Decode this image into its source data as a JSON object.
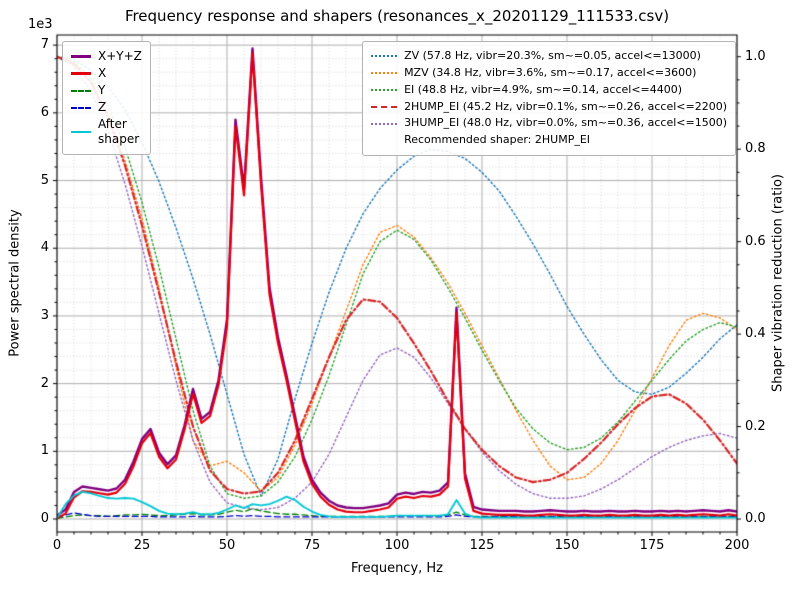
{
  "chart_data": {
    "type": "line",
    "title": "Frequency response and shapers (resonances_x_20201129_111533.csv)",
    "xlabel": "Frequency, Hz",
    "ylabel_left": "Power spectral density",
    "ylabel_right": "Shaper vibration reduction (ratio)",
    "offset_text": "1e3",
    "xlim": [
      0,
      200
    ],
    "ylim_left": [
      -0.192,
      7.15
    ],
    "ylim_right": [
      -0.028,
      1.047
    ],
    "xticks": [
      0,
      25,
      50,
      75,
      100,
      125,
      150,
      175,
      200
    ],
    "xtick_minor_step": 5,
    "yticks_left": [
      0,
      1,
      2,
      3,
      4,
      5,
      6,
      7
    ],
    "ytick_left_minor_step": 0.2,
    "yticks_right": [
      "0.0",
      "0.2",
      "0.4",
      "0.6",
      "0.8",
      "1.0"
    ],
    "grid": {
      "major_color": "#b0b0b0",
      "minor_color": "#d7d7d7"
    },
    "legend_left": {
      "entries": [
        {
          "name": "xyz",
          "label": "X+Y+Z",
          "color": "#800080",
          "dash": "solid",
          "lw": 3
        },
        {
          "name": "x",
          "label": "X",
          "color": "#e3000e",
          "dash": "solid",
          "lw": 3
        },
        {
          "name": "y",
          "label": "Y",
          "color": "#008000",
          "dash": "dashed",
          "lw": 2
        },
        {
          "name": "z",
          "label": "Z",
          "color": "#0000cd",
          "dash": "dashed",
          "lw": 2
        },
        {
          "name": "after-shaper",
          "label": "After\nshaper",
          "color": "#00c8d4",
          "dash": "solid",
          "lw": 2
        }
      ]
    },
    "legend_right": {
      "entries": [
        {
          "name": "zv",
          "label": "ZV (57.8 Hz, vibr=20.3%, sm~=0.05, accel<=13000)",
          "color": "#1f77b4",
          "dash": "dotted",
          "lw": 2
        },
        {
          "name": "mzv",
          "label": "MZV (34.8 Hz, vibr=3.6%, sm~=0.17, accel<=3600)",
          "color": "#ff7f0e",
          "dash": "dotted",
          "lw": 2
        },
        {
          "name": "ei",
          "label": "EI (48.8 Hz, vibr=4.9%, sm~=0.14, accel<=4400)",
          "color": "#2ca02c",
          "dash": "dotted",
          "lw": 2
        },
        {
          "name": "2hump_ei",
          "label": "2HUMP_EI (45.2 Hz, vibr=0.1%, sm~=0.26, accel<=2200)",
          "color": "#d62728",
          "dash": "dashdot",
          "lw": 2
        },
        {
          "name": "3hump_ei",
          "label": "3HUMP_EI (48.0 Hz, vibr=0.0%, sm~=0.36, accel<=1500)",
          "color": "#9467bd",
          "dash": "dotted",
          "lw": 2
        }
      ],
      "note": "Recommended shaper: 2HUMP_EI"
    },
    "psd_units": "1e3",
    "psd": {
      "x": [
        0,
        2.5,
        5,
        7.5,
        10,
        12.5,
        15,
        17.5,
        20,
        22.5,
        25,
        27.5,
        30,
        32.5,
        35,
        37.5,
        40,
        42.5,
        45,
        47.5,
        50,
        52.5,
        55,
        57.5,
        60,
        62.5,
        65,
        67.5,
        70,
        72.5,
        75,
        77.5,
        80,
        82.5,
        85,
        87.5,
        90,
        92.5,
        95,
        97.5,
        100,
        102.5,
        105,
        107.5,
        110,
        112.5,
        115,
        117.5,
        120,
        122.5,
        125,
        127.5,
        130,
        132.5,
        135,
        137.5,
        140,
        142.5,
        145,
        147.5,
        150,
        152.5,
        155,
        157.5,
        160,
        162.5,
        165,
        167.5,
        170,
        172.5,
        175,
        177.5,
        180,
        182.5,
        185,
        187.5,
        190,
        192.5,
        195,
        197.5,
        200
      ],
      "series": [
        {
          "name": "Y",
          "color": "#008000",
          "dash": "dashed",
          "lw": 1.3,
          "values": [
            0.01,
            0.03,
            0.05,
            0.06,
            0.05,
            0.05,
            0.04,
            0.05,
            0.06,
            0.06,
            0.07,
            0.06,
            0.05,
            0.05,
            0.06,
            0.07,
            0.08,
            0.06,
            0.06,
            0.07,
            0.1,
            0.13,
            0.11,
            0.15,
            0.12,
            0.1,
            0.08,
            0.07,
            0.07,
            0.06,
            0.05,
            0.04,
            0.04,
            0.04,
            0.04,
            0.04,
            0.04,
            0.04,
            0.04,
            0.04,
            0.05,
            0.05,
            0.05,
            0.05,
            0.05,
            0.05,
            0.06,
            0.1,
            0.06,
            0.04,
            0.04,
            0.04,
            0.04,
            0.04,
            0.04,
            0.04,
            0.04,
            0.04,
            0.04,
            0.04,
            0.04,
            0.04,
            0.04,
            0.04,
            0.04,
            0.04,
            0.04,
            0.04,
            0.04,
            0.04,
            0.04,
            0.04,
            0.04,
            0.04,
            0.04,
            0.04,
            0.04,
            0.04,
            0.04,
            0.04,
            0.04
          ]
        },
        {
          "name": "Z",
          "color": "#0000cd",
          "dash": "dashed",
          "lw": 1.3,
          "values": [
            0.02,
            0.06,
            0.09,
            0.07,
            0.05,
            0.04,
            0.04,
            0.04,
            0.04,
            0.04,
            0.04,
            0.04,
            0.03,
            0.03,
            0.03,
            0.03,
            0.04,
            0.03,
            0.03,
            0.03,
            0.04,
            0.05,
            0.04,
            0.05,
            0.04,
            0.04,
            0.03,
            0.03,
            0.03,
            0.03,
            0.03,
            0.03,
            0.03,
            0.03,
            0.03,
            0.03,
            0.03,
            0.03,
            0.03,
            0.03,
            0.03,
            0.03,
            0.03,
            0.03,
            0.03,
            0.03,
            0.04,
            0.06,
            0.04,
            0.03,
            0.03,
            0.03,
            0.03,
            0.03,
            0.03,
            0.03,
            0.03,
            0.03,
            0.03,
            0.03,
            0.03,
            0.03,
            0.03,
            0.03,
            0.03,
            0.03,
            0.03,
            0.03,
            0.03,
            0.03,
            0.03,
            0.03,
            0.03,
            0.03,
            0.03,
            0.03,
            0.03,
            0.03,
            0.03,
            0.03,
            0.03
          ]
        },
        {
          "name": "X+Y+Z",
          "color": "#800080",
          "dash": "solid",
          "lw": 2.4,
          "values": [
            0.05,
            0.14,
            0.4,
            0.48,
            0.46,
            0.44,
            0.42,
            0.45,
            0.58,
            0.85,
            1.18,
            1.33,
            0.98,
            0.81,
            0.94,
            1.38,
            1.92,
            1.48,
            1.58,
            2.05,
            2.95,
            5.9,
            4.88,
            6.95,
            5.05,
            3.42,
            2.68,
            2.12,
            1.52,
            0.92,
            0.58,
            0.39,
            0.27,
            0.2,
            0.17,
            0.16,
            0.16,
            0.18,
            0.2,
            0.23,
            0.36,
            0.39,
            0.37,
            0.4,
            0.39,
            0.42,
            0.54,
            3.12,
            0.67,
            0.18,
            0.14,
            0.13,
            0.12,
            0.12,
            0.12,
            0.11,
            0.11,
            0.12,
            0.13,
            0.12,
            0.11,
            0.11,
            0.12,
            0.11,
            0.11,
            0.12,
            0.11,
            0.11,
            0.12,
            0.11,
            0.11,
            0.12,
            0.11,
            0.12,
            0.11,
            0.12,
            0.13,
            0.12,
            0.11,
            0.13,
            0.11
          ]
        },
        {
          "name": "X",
          "color": "#e3000e",
          "dash": "solid",
          "lw": 2.2,
          "values": [
            0.01,
            0.08,
            0.32,
            0.41,
            0.4,
            0.38,
            0.36,
            0.39,
            0.52,
            0.78,
            1.12,
            1.27,
            0.92,
            0.75,
            0.88,
            1.32,
            1.85,
            1.42,
            1.52,
            1.98,
            2.85,
            5.8,
            4.78,
            6.88,
            4.95,
            3.32,
            2.6,
            2.05,
            1.45,
            0.85,
            0.52,
            0.33,
            0.21,
            0.14,
            0.11,
            0.1,
            0.1,
            0.12,
            0.14,
            0.17,
            0.3,
            0.33,
            0.31,
            0.34,
            0.33,
            0.36,
            0.48,
            3.05,
            0.6,
            0.12,
            0.08,
            0.07,
            0.06,
            0.06,
            0.06,
            0.05,
            0.05,
            0.06,
            0.07,
            0.06,
            0.05,
            0.05,
            0.06,
            0.05,
            0.05,
            0.06,
            0.05,
            0.05,
            0.06,
            0.05,
            0.05,
            0.06,
            0.05,
            0.06,
            0.05,
            0.06,
            0.07,
            0.06,
            0.05,
            0.07,
            0.05
          ]
        },
        {
          "name": "After shaper",
          "color": "#00c8d4",
          "dash": "solid",
          "lw": 1.8,
          "values": [
            0.01,
            0.22,
            0.35,
            0.4,
            0.38,
            0.34,
            0.31,
            0.3,
            0.31,
            0.3,
            0.25,
            0.19,
            0.12,
            0.08,
            0.07,
            0.08,
            0.1,
            0.07,
            0.07,
            0.09,
            0.14,
            0.2,
            0.16,
            0.22,
            0.2,
            0.22,
            0.27,
            0.33,
            0.28,
            0.18,
            0.11,
            0.06,
            0.04,
            0.03,
            0.03,
            0.03,
            0.03,
            0.03,
            0.03,
            0.04,
            0.05,
            0.05,
            0.05,
            0.05,
            0.05,
            0.05,
            0.07,
            0.28,
            0.08,
            0.03,
            0.02,
            0.02,
            0.02,
            0.02,
            0.02,
            0.02,
            0.02,
            0.02,
            0.02,
            0.02,
            0.02,
            0.02,
            0.02,
            0.02,
            0.02,
            0.02,
            0.02,
            0.02,
            0.02,
            0.02,
            0.02,
            0.02,
            0.02,
            0.02,
            0.02,
            0.02,
            0.02,
            0.02,
            0.02,
            0.02,
            0.02
          ]
        }
      ]
    },
    "shapers": {
      "x": [
        0,
        5,
        10,
        15,
        20,
        25,
        30,
        35,
        40,
        45,
        50,
        55,
        60,
        65,
        70,
        75,
        80,
        85,
        90,
        95,
        100,
        105,
        110,
        115,
        120,
        125,
        130,
        135,
        140,
        145,
        150,
        155,
        160,
        165,
        170,
        175,
        180,
        185,
        190,
        195,
        200
      ],
      "series": [
        {
          "name": "ZV",
          "color": "#1f77b4",
          "dash": "dotted",
          "lw": 1.4,
          "values": [
            1.0,
            0.995,
            0.97,
            0.935,
            0.885,
            0.815,
            0.73,
            0.63,
            0.52,
            0.4,
            0.27,
            0.14,
            0.05,
            0.13,
            0.26,
            0.38,
            0.49,
            0.585,
            0.66,
            0.715,
            0.755,
            0.785,
            0.8,
            0.795,
            0.78,
            0.75,
            0.71,
            0.655,
            0.595,
            0.53,
            0.46,
            0.4,
            0.345,
            0.3,
            0.275,
            0.27,
            0.285,
            0.315,
            0.35,
            0.39,
            0.42
          ]
        },
        {
          "name": "MZV",
          "color": "#ff7f0e",
          "dash": "dotted",
          "lw": 1.4,
          "values": [
            1.0,
            0.985,
            0.945,
            0.875,
            0.775,
            0.65,
            0.5,
            0.33,
            0.17,
            0.115,
            0.125,
            0.1,
            0.06,
            0.09,
            0.16,
            0.25,
            0.35,
            0.45,
            0.55,
            0.62,
            0.635,
            0.61,
            0.565,
            0.51,
            0.445,
            0.375,
            0.305,
            0.235,
            0.17,
            0.115,
            0.085,
            0.09,
            0.12,
            0.17,
            0.235,
            0.305,
            0.375,
            0.43,
            0.445,
            0.435,
            0.41
          ]
        },
        {
          "name": "EI",
          "color": "#2ca02c",
          "dash": "dotted",
          "lw": 1.4,
          "values": [
            1.0,
            0.99,
            0.955,
            0.895,
            0.805,
            0.685,
            0.545,
            0.39,
            0.235,
            0.115,
            0.055,
            0.045,
            0.05,
            0.08,
            0.135,
            0.215,
            0.31,
            0.42,
            0.53,
            0.6,
            0.625,
            0.605,
            0.56,
            0.5,
            0.435,
            0.365,
            0.3,
            0.24,
            0.195,
            0.165,
            0.15,
            0.155,
            0.175,
            0.21,
            0.255,
            0.3,
            0.345,
            0.385,
            0.41,
            0.425,
            0.415
          ]
        },
        {
          "name": "3HUMP_EI",
          "color": "#9467bd",
          "dash": "dotted",
          "lw": 1.4,
          "values": [
            1.0,
            0.98,
            0.925,
            0.84,
            0.725,
            0.59,
            0.445,
            0.3,
            0.17,
            0.08,
            0.035,
            0.025,
            0.02,
            0.025,
            0.045,
            0.08,
            0.14,
            0.22,
            0.3,
            0.355,
            0.37,
            0.35,
            0.305,
            0.25,
            0.195,
            0.145,
            0.105,
            0.075,
            0.055,
            0.045,
            0.045,
            0.05,
            0.065,
            0.085,
            0.11,
            0.135,
            0.155,
            0.17,
            0.18,
            0.185,
            0.175
          ]
        },
        {
          "name": "2HUMP_EI",
          "color": "#d62728",
          "dash": "dashdot",
          "lw": 2.2,
          "values": [
            1.0,
            0.985,
            0.945,
            0.87,
            0.765,
            0.635,
            0.49,
            0.34,
            0.2,
            0.105,
            0.065,
            0.055,
            0.06,
            0.1,
            0.17,
            0.26,
            0.35,
            0.43,
            0.475,
            0.47,
            0.435,
            0.38,
            0.32,
            0.255,
            0.195,
            0.15,
            0.115,
            0.09,
            0.08,
            0.085,
            0.1,
            0.13,
            0.165,
            0.205,
            0.24,
            0.265,
            0.27,
            0.25,
            0.215,
            0.17,
            0.12
          ]
        }
      ]
    }
  }
}
